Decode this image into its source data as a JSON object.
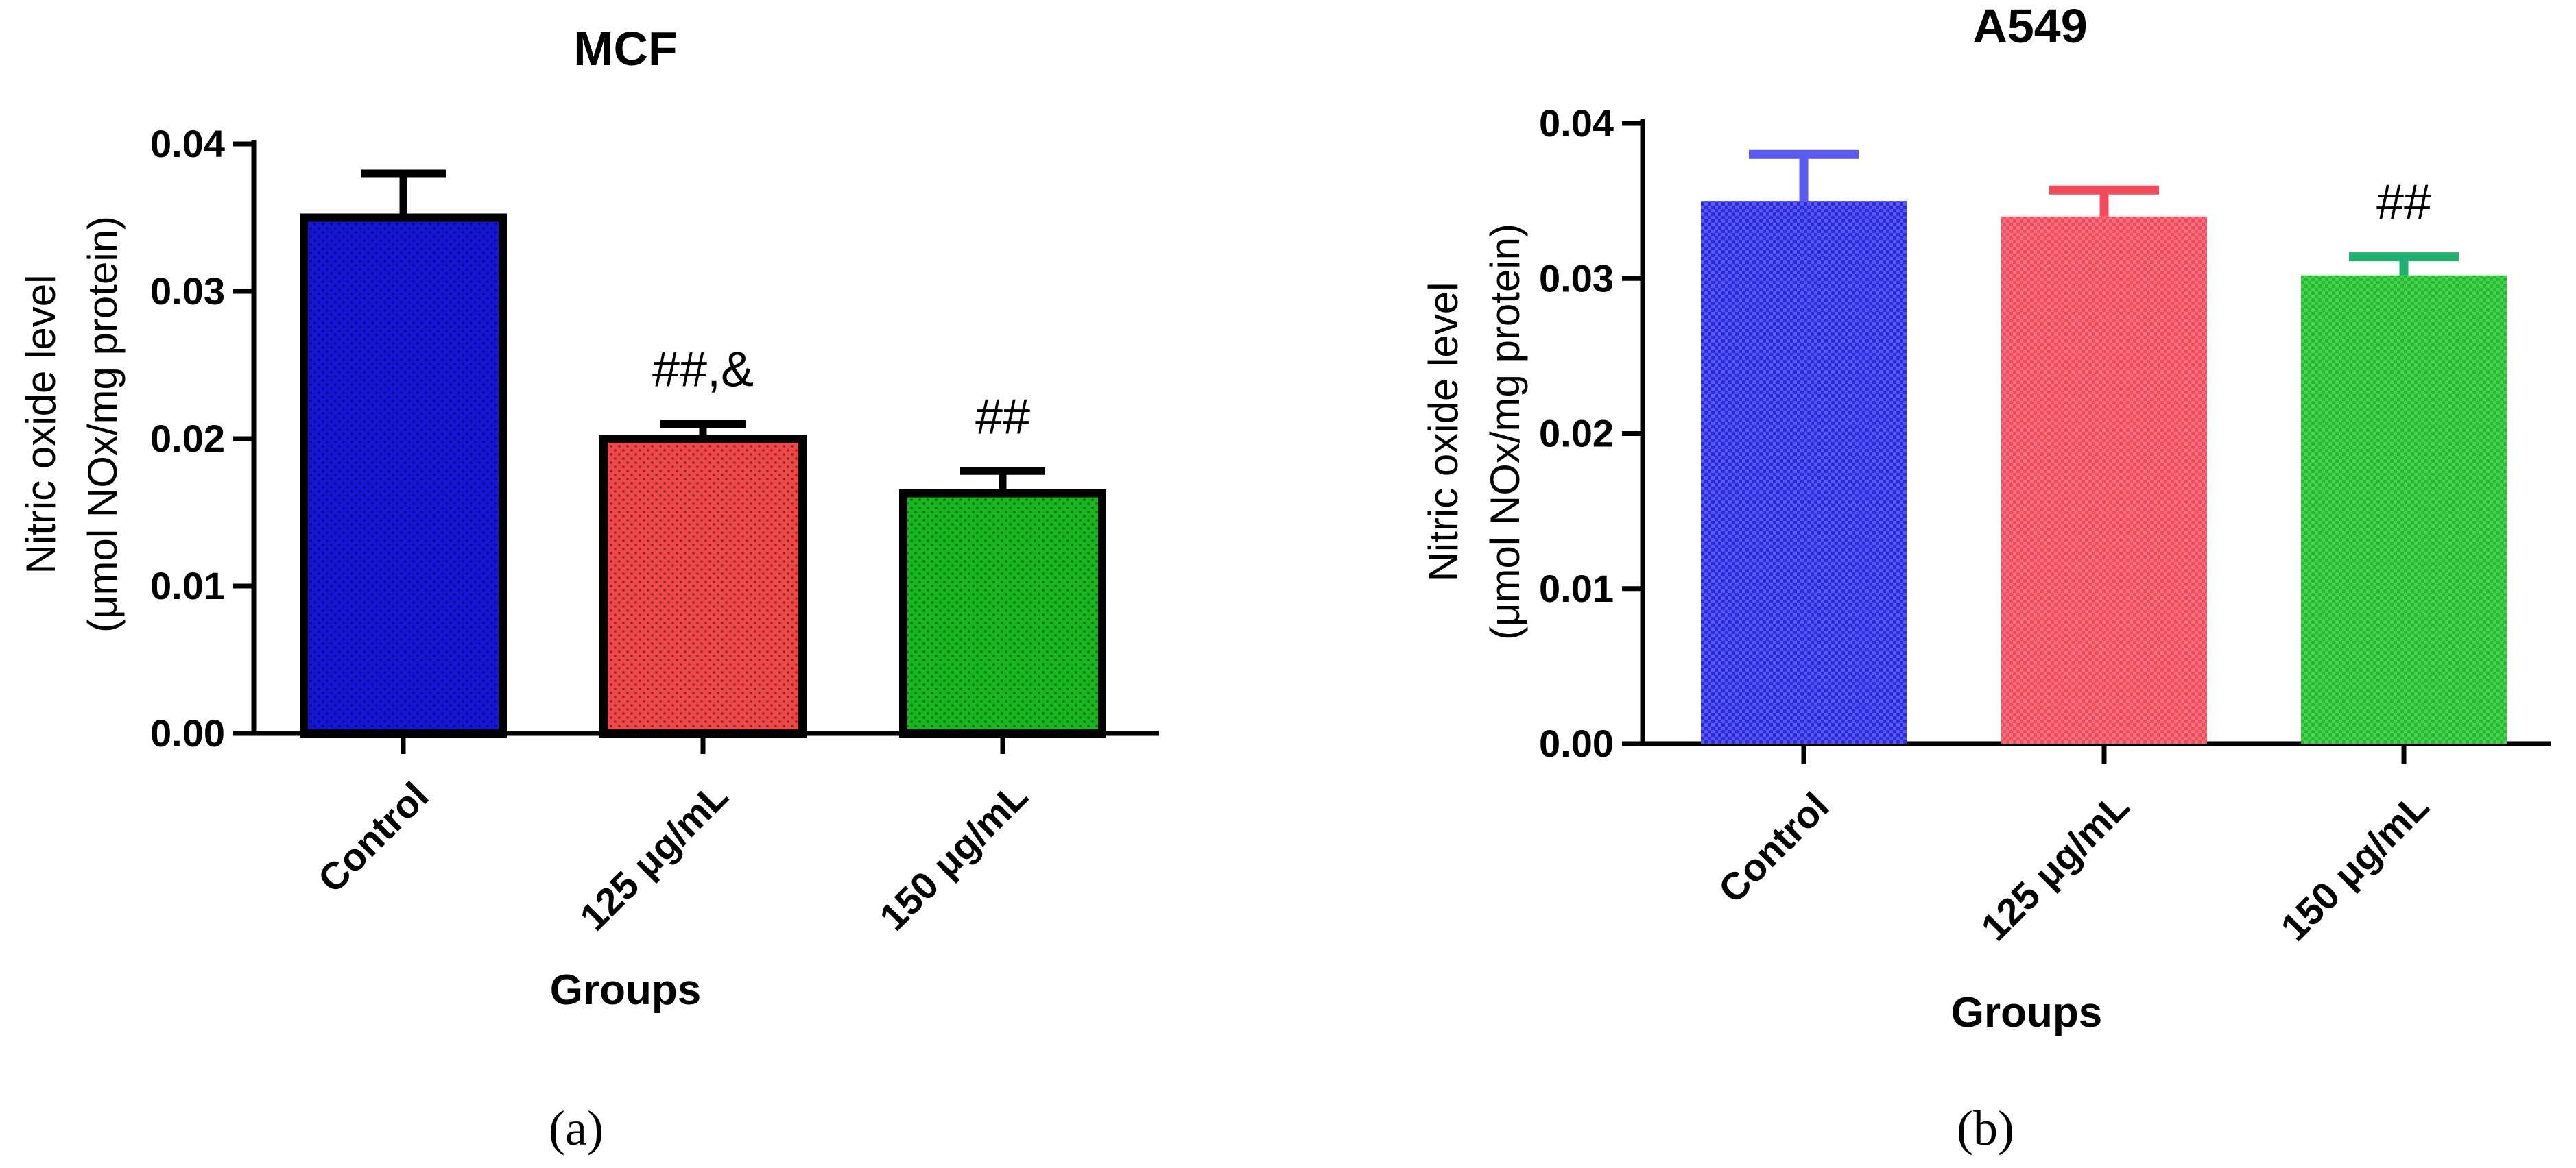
{
  "chart_data": [
    {
      "type": "bar",
      "title": "MCF",
      "xlabel": "Groups",
      "ylabel_line1": "Nitric oxide level",
      "ylabel_line2": "(μmol NOx/mg protein)",
      "categories": [
        "Control",
        "125 μg/mL",
        "150 μg/mL"
      ],
      "values": [
        0.035,
        0.02,
        0.0163
      ],
      "errors": [
        0.003,
        0.001,
        0.0015
      ],
      "annotations": [
        "",
        "##,&",
        "##"
      ],
      "colors": [
        "#1515d6",
        "#f04848",
        "#17b81f"
      ],
      "error_colors": [
        "#000000",
        "#000000",
        "#000000"
      ],
      "bar_outline": "#000000",
      "ylim": [
        0,
        0.04
      ],
      "yticks": [
        "0.00",
        "0.01",
        "0.02",
        "0.03",
        "0.04"
      ],
      "grid": false,
      "panel_label": "(a)"
    },
    {
      "type": "bar",
      "title": "A549",
      "xlabel": "Groups",
      "ylabel_line1": "Nitric oxide level",
      "ylabel_line2": "(μmol NOx/mg protein)",
      "categories": [
        "Control",
        "125 μg/mL",
        "150 μg/mL"
      ],
      "values": [
        0.035,
        0.034,
        0.0302
      ],
      "errors": [
        0.003,
        0.0017,
        0.0012
      ],
      "annotations": [
        "",
        "",
        "##"
      ],
      "colors": [
        "#2a2ae6",
        "#f24c5c",
        "#1fbf2a"
      ],
      "error_colors": [
        "#5a5af0",
        "#f24c5c",
        "#20b070"
      ],
      "bar_outline": "none",
      "ylim": [
        0,
        0.04
      ],
      "yticks": [
        "0.00",
        "0.01",
        "0.02",
        "0.03",
        "0.04"
      ],
      "grid": false,
      "panel_label": "(b)"
    }
  ]
}
